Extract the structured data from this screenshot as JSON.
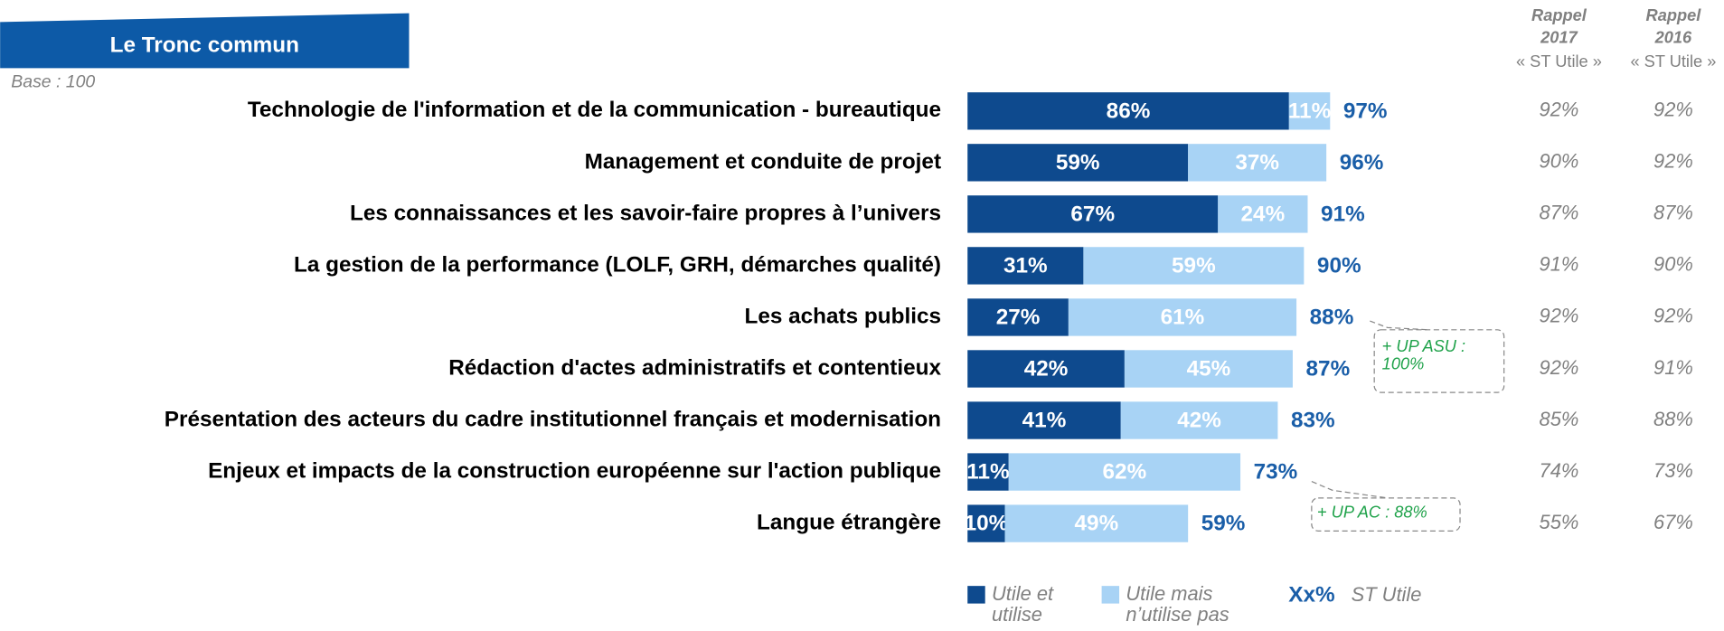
{
  "chart_data": {
    "type": "bar",
    "orientation": "horizontal",
    "stacked": true,
    "title": "Le Tronc commun",
    "subtitle": "Base : 100",
    "categories": [
      "Technologie de l'information et de la communication - bureautique",
      "Management et conduite de projet",
      "Les connaissances et les savoir-faire propres à l’univers",
      "La gestion de la performance (LOLF, GRH, démarches qualité)",
      "Les achats publics",
      "Rédaction d'actes administratifs et contentieux",
      "Présentation des acteurs du cadre institutionnel français et modernisation",
      "Enjeux et impacts de la construction européenne sur l'action publique",
      "Langue étrangère"
    ],
    "series": [
      {
        "name": "Utile et utilise",
        "color": "#0e4a8e",
        "values": [
          86,
          59,
          67,
          31,
          27,
          42,
          41,
          11,
          10
        ],
        "value_labels": [
          "86%",
          "59%",
          "67%",
          "31%",
          "27%",
          "42%",
          "41%",
          "11%",
          "10%"
        ]
      },
      {
        "name": "Utile mais n’utilise pas",
        "color": "#a8d3f5",
        "values": [
          11,
          37,
          24,
          59,
          61,
          45,
          42,
          62,
          49
        ],
        "value_labels": [
          "11%",
          "37%",
          "24%",
          "59%",
          "61%",
          "45%",
          "42%",
          "62%",
          "49%"
        ]
      }
    ],
    "totals": {
      "name": "ST Utile",
      "legend_label": "Xx%",
      "color": "#1a5ea8",
      "values": [
        97,
        96,
        91,
        90,
        88,
        87,
        83,
        73,
        59
      ],
      "value_labels": [
        "97%",
        "96%",
        "91%",
        "90%",
        "88%",
        "87%",
        "83%",
        "73%",
        "59%"
      ]
    },
    "rappel": [
      {
        "title": "Rappel",
        "year": "2017",
        "subtitle": "« ST Utile »",
        "values": [
          92,
          90,
          87,
          91,
          92,
          92,
          85,
          74,
          55
        ],
        "value_labels": [
          "92%",
          "90%",
          "87%",
          "91%",
          "92%",
          "92%",
          "85%",
          "74%",
          "55%"
        ]
      },
      {
        "title": "Rappel",
        "year": "2016",
        "subtitle": "« ST Utile »",
        "values": [
          92,
          92,
          87,
          90,
          92,
          91,
          88,
          73,
          67
        ],
        "value_labels": [
          "92%",
          "92%",
          "87%",
          "90%",
          "92%",
          "91%",
          "88%",
          "73%",
          "67%"
        ]
      }
    ],
    "annotations": [
      "+ UP ASU : 100%",
      "+ UP AC : 88%"
    ]
  }
}
